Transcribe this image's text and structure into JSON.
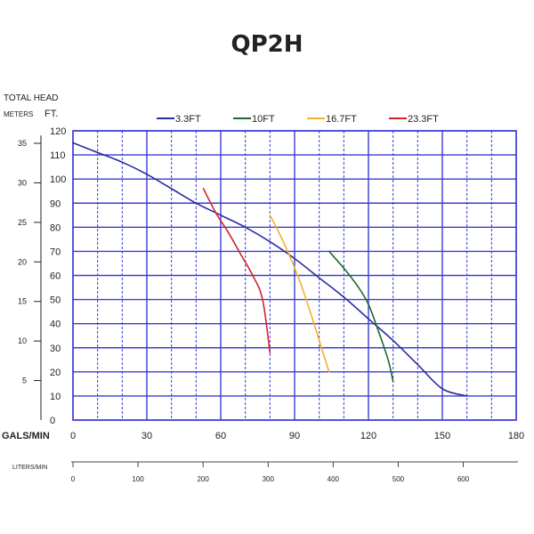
{
  "chart_data": {
    "type": "line",
    "title": "QP2H",
    "y_label_main": "TOTAL HEAD",
    "y_label_meters": "METERS",
    "y_label_feet": "FT.",
    "x_label": "GALS/MIN",
    "x2_label": "LITERS/MIN",
    "xlim": [
      0,
      180
    ],
    "ylim": [
      0,
      120
    ],
    "x_ticks": [
      0,
      30,
      60,
      90,
      120,
      150,
      180
    ],
    "y_ticks": [
      0,
      10,
      20,
      30,
      40,
      50,
      60,
      70,
      80,
      90,
      100,
      110,
      120
    ],
    "meter_ticks": [
      5,
      10,
      15,
      20,
      25,
      30,
      35
    ],
    "liter_ticks": [
      0,
      100,
      200,
      300,
      400,
      500,
      600
    ],
    "grid": true,
    "legend_position": "top",
    "series": [
      {
        "name": "3.3FT",
        "color": "#2a2aa6",
        "x": [
          0,
          10,
          20,
          30,
          40,
          50,
          60,
          70,
          80,
          90,
          100,
          110,
          120,
          130,
          140,
          150,
          160
        ],
        "y": [
          115,
          111,
          107,
          102,
          96,
          90,
          85,
          80,
          74,
          67,
          59,
          51,
          42,
          33,
          23,
          13,
          10
        ]
      },
      {
        "name": "10FT",
        "color": "#1e6a2a",
        "x": [
          104,
          110,
          116,
          120,
          124,
          128,
          130
        ],
        "y": [
          70,
          63,
          55,
          48,
          37,
          25,
          16
        ]
      },
      {
        "name": "16.7FT",
        "color": "#f2b22a",
        "x": [
          80,
          84,
          88,
          92,
          96,
          100,
          104
        ],
        "y": [
          85,
          77,
          68,
          58,
          46,
          33,
          20
        ]
      },
      {
        "name": "23.3FT",
        "color": "#d2232a",
        "x": [
          53,
          58,
          63,
          68,
          73,
          77,
          80
        ],
        "y": [
          96,
          86,
          78,
          69,
          60,
          50,
          28
        ]
      }
    ]
  }
}
